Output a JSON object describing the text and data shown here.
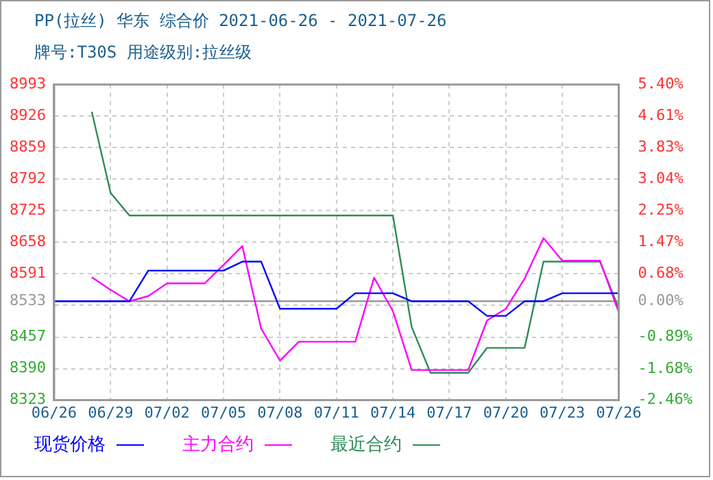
{
  "chart_data": {
    "type": "line",
    "title": "PP(拉丝) 华东 综合价 2021-06-26 - 2021-07-26",
    "subtitle": "牌号:T30S 用途级别:拉丝级",
    "categories": [
      "06/26",
      null,
      null,
      "06/29",
      null,
      null,
      "07/02",
      null,
      null,
      "07/05",
      null,
      null,
      "07/08",
      null,
      null,
      "07/11",
      null,
      null,
      "07/14",
      null,
      null,
      "07/17",
      null,
      null,
      "07/20",
      null,
      null,
      "07/23",
      null,
      null,
      "07/26"
    ],
    "series": [
      {
        "name": "现货价格",
        "color": "#0000ff",
        "values": [
          8533,
          8533,
          8533,
          8533,
          8533,
          8598,
          8598,
          8598,
          8598,
          8598,
          8617,
          8617,
          8517,
          8517,
          8517,
          8517,
          8550,
          8550,
          8550,
          8533,
          8533,
          8533,
          8533,
          8502,
          8502,
          8533,
          8533,
          8550,
          8550,
          8550,
          8550
        ]
      },
      {
        "name": "主力合约",
        "color": "#ff00ff",
        "values": [
          null,
          null,
          8584,
          8557,
          8533,
          8544,
          8571,
          8571,
          8571,
          8610,
          8650,
          8475,
          8407,
          8447,
          8447,
          8447,
          8447,
          8583,
          8512,
          8387,
          8387,
          8387,
          8387,
          8492,
          8517,
          8581,
          8667,
          8619,
          8619,
          8619,
          8510
        ]
      },
      {
        "name": "最近合约",
        "color": "#2e8b57",
        "values": [
          null,
          null,
          8935,
          8763,
          8715,
          8715,
          8715,
          8715,
          8715,
          8715,
          8715,
          8715,
          8715,
          8715,
          8715,
          8715,
          8715,
          8715,
          8715,
          8478,
          8381,
          8381,
          8381,
          8434,
          8434,
          8434,
          8617,
          8617,
          8617,
          8617,
          8518
        ]
      }
    ],
    "ylim": [
      8323,
      8993
    ],
    "yticks": [
      8323,
      8390,
      8457,
      {
        "value": 8524,
        "label": null
      },
      8533,
      8591,
      8658,
      8725,
      8792,
      8859,
      8926,
      8993
    ],
    "y2lim": [
      -2.46,
      5.4
    ],
    "y2ticks": [
      {
        "value": -2.46,
        "label": "-2.46%"
      },
      {
        "value": -1.68,
        "label": "-1.68%"
      },
      {
        "value": -0.89,
        "label": "-0.89%"
      },
      {
        "value": 0,
        "label": "0.00%"
      },
      {
        "value": 0.68,
        "label": "0.68%"
      },
      {
        "value": 1.47,
        "label": "1.47%"
      },
      {
        "value": 2.25,
        "label": "2.25%"
      },
      {
        "value": 3.04,
        "label": "3.04%"
      },
      {
        "value": 3.83,
        "label": "3.83%"
      },
      {
        "value": 4.61,
        "label": "4.61%"
      },
      {
        "value": 5.4,
        "label": "5.40%"
      }
    ],
    "ref_lines": [
      {
        "axis": "y",
        "value": 8533,
        "color": "#999999"
      }
    ],
    "grid": true,
    "legend": "bottom",
    "marker": "none",
    "line_style": "solid"
  }
}
